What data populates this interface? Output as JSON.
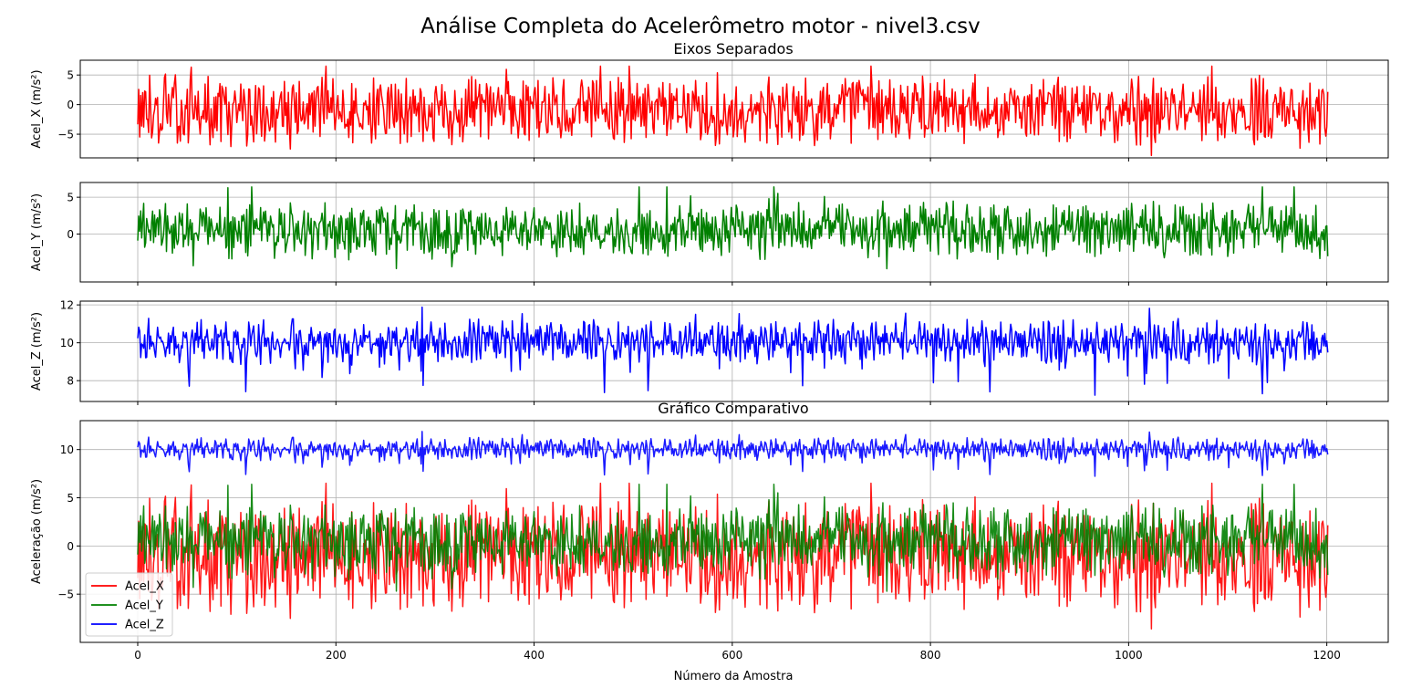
{
  "figure": {
    "title": "Análise Completa do Acelerômetro motor - nivel3.csv",
    "subtitle_separate": "Eixos Separados",
    "subtitle_compare": "Gráfico Comparativo",
    "xlabel": "Número da Amostra"
  },
  "chart_data": [
    {
      "type": "line",
      "panel": "acel-x",
      "ylabel": "Acel_X (m/s²)",
      "series": [
        {
          "name": "Acel_X",
          "color": "#ff0000"
        }
      ],
      "xlim": [
        -58,
        1262
      ],
      "ylim": [
        -9,
        7.5
      ],
      "xticks": [
        0,
        200,
        400,
        600,
        800,
        1000,
        1200
      ],
      "yticks": [
        5,
        0,
        -5
      ],
      "n_samples": 1202,
      "value_range": [
        -8.6,
        6.5
      ],
      "grid": true
    },
    {
      "type": "line",
      "panel": "acel-y",
      "ylabel": "Acel_Y (m/s²)",
      "series": [
        {
          "name": "Acel_Y",
          "color": "#008000"
        }
      ],
      "xlim": [
        -58,
        1262
      ],
      "ylim": [
        -6.5,
        7
      ],
      "xticks": [
        0,
        200,
        400,
        600,
        800,
        1000,
        1200
      ],
      "yticks": [
        5,
        0
      ],
      "n_samples": 1202,
      "value_range": [
        -4.7,
        6.4
      ],
      "grid": true
    },
    {
      "type": "line",
      "panel": "acel-z",
      "ylabel": "Acel_Z (m/s²)",
      "series": [
        {
          "name": "Acel_Z",
          "color": "#0000ff"
        }
      ],
      "xlim": [
        -58,
        1262
      ],
      "ylim": [
        6.9,
        12.2
      ],
      "xticks": [
        0,
        200,
        400,
        600,
        800,
        1000,
        1200
      ],
      "yticks": [
        12,
        10,
        8
      ],
      "n_samples": 1202,
      "value_range": [
        7.2,
        11.9
      ],
      "grid": true
    },
    {
      "type": "line",
      "panel": "comparativo",
      "ylabel": "Aceleração (m/s²)",
      "series": [
        {
          "name": "Acel_X",
          "color": "#ff0000"
        },
        {
          "name": "Acel_Y",
          "color": "#008000"
        },
        {
          "name": "Acel_Z",
          "color": "#0000ff"
        }
      ],
      "xlim": [
        -58,
        1262
      ],
      "ylim": [
        -10,
        13
      ],
      "xticks": [
        0,
        200,
        400,
        600,
        800,
        1000,
        1200
      ],
      "yticks": [
        10,
        5,
        0,
        -5
      ],
      "legend": "lower-left",
      "grid": true
    }
  ]
}
